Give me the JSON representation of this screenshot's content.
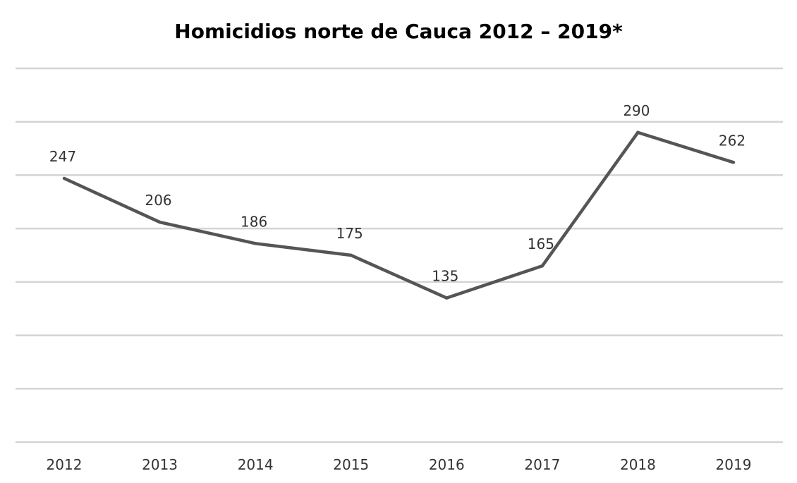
{
  "chart_data": {
    "type": "line",
    "title": "Homicidios norte de Cauca 2012 – 2019*",
    "xlabel": "",
    "ylabel": "",
    "categories": [
      "2012",
      "2013",
      "2014",
      "2015",
      "2016",
      "2017",
      "2018",
      "2019"
    ],
    "series": [
      {
        "values": [
          247,
          206,
          186,
          175,
          135,
          165,
          290,
          262
        ],
        "color": "#555555"
      }
    ],
    "ylim": [
      0,
      350
    ],
    "y_gridline_step": 50,
    "grid": true,
    "y_tick_labels_shown": false,
    "data_labels_shown": true,
    "legend": "none",
    "colors": {
      "line": "#555555",
      "grid": "#d4d4d4",
      "text": "#333333"
    }
  }
}
